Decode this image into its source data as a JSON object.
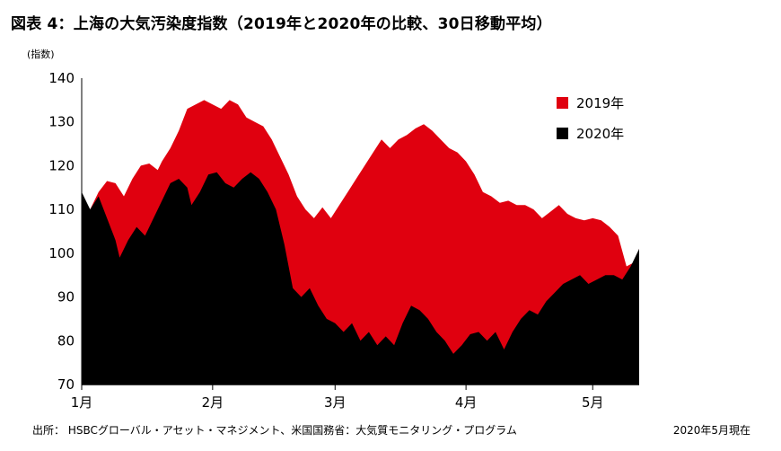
{
  "chart_data": {
    "type": "area",
    "title": "図表 4：上海の大気汚染度指数（2019年と2020年の比較、30日移動平均）",
    "ylabel": "(指数)",
    "xlabel": "",
    "ylim": [
      70,
      140
    ],
    "yticks": [
      70,
      80,
      90,
      100,
      110,
      120,
      130,
      140
    ],
    "xlim": [
      0,
      132
    ],
    "x_tick_labels": [
      {
        "day": 0,
        "label": "1月"
      },
      {
        "day": 31,
        "label": "2月"
      },
      {
        "day": 60,
        "label": "3月"
      },
      {
        "day": 91,
        "label": "4月"
      },
      {
        "day": 121,
        "label": "5月"
      }
    ],
    "legend_position": "top-right",
    "series": [
      {
        "name": "2019年",
        "color": "#e0000f",
        "points": [
          [
            0,
            113
          ],
          [
            2,
            110
          ],
          [
            4,
            114
          ],
          [
            6,
            116.5
          ],
          [
            8,
            116
          ],
          [
            10,
            113
          ],
          [
            12,
            117
          ],
          [
            14,
            120
          ],
          [
            16,
            120.5
          ],
          [
            18,
            119
          ],
          [
            19,
            121
          ],
          [
            21,
            124
          ],
          [
            23,
            128
          ],
          [
            25,
            133
          ],
          [
            27,
            134
          ],
          [
            29,
            135
          ],
          [
            31,
            134
          ],
          [
            33,
            133
          ],
          [
            35,
            135
          ],
          [
            37,
            134
          ],
          [
            39,
            131
          ],
          [
            41,
            130
          ],
          [
            43,
            129
          ],
          [
            45,
            126
          ],
          [
            47,
            122
          ],
          [
            49,
            118
          ],
          [
            51,
            113
          ],
          [
            53,
            110
          ],
          [
            55,
            108
          ],
          [
            57,
            110.5
          ],
          [
            59,
            108
          ],
          [
            61,
            111
          ],
          [
            63,
            114
          ],
          [
            65,
            117
          ],
          [
            67,
            120
          ],
          [
            69,
            123
          ],
          [
            71,
            126
          ],
          [
            73,
            124
          ],
          [
            75,
            126
          ],
          [
            77,
            127
          ],
          [
            79,
            128.5
          ],
          [
            81,
            129.5
          ],
          [
            83,
            128
          ],
          [
            85,
            126
          ],
          [
            87,
            124
          ],
          [
            89,
            123
          ],
          [
            91,
            121
          ],
          [
            93,
            118
          ],
          [
            95,
            114
          ],
          [
            97,
            113
          ],
          [
            99,
            111.5
          ],
          [
            101,
            112
          ],
          [
            103,
            111
          ],
          [
            105,
            111
          ],
          [
            107,
            110
          ],
          [
            109,
            108
          ],
          [
            111,
            109.5
          ],
          [
            113,
            111
          ],
          [
            115,
            109
          ],
          [
            117,
            108
          ],
          [
            119,
            107.5
          ],
          [
            121,
            108
          ],
          [
            123,
            107.5
          ],
          [
            125,
            106
          ],
          [
            127,
            104
          ],
          [
            129,
            97
          ],
          [
            131,
            98
          ],
          [
            132,
            101
          ]
        ]
      },
      {
        "name": "2020年",
        "color": "#000000",
        "points": [
          [
            0,
            114
          ],
          [
            2,
            110
          ],
          [
            4,
            113
          ],
          [
            6,
            108
          ],
          [
            8,
            103
          ],
          [
            9,
            99
          ],
          [
            11,
            103
          ],
          [
            13,
            106
          ],
          [
            15,
            104
          ],
          [
            17,
            108
          ],
          [
            19,
            112
          ],
          [
            21,
            116
          ],
          [
            23,
            117
          ],
          [
            25,
            115
          ],
          [
            26,
            111
          ],
          [
            28,
            114
          ],
          [
            30,
            118
          ],
          [
            32,
            118.5
          ],
          [
            34,
            116
          ],
          [
            36,
            115
          ],
          [
            38,
            117
          ],
          [
            40,
            118.5
          ],
          [
            42,
            117
          ],
          [
            44,
            114
          ],
          [
            46,
            110
          ],
          [
            48,
            102
          ],
          [
            50,
            92
          ],
          [
            52,
            90
          ],
          [
            54,
            92
          ],
          [
            56,
            88
          ],
          [
            58,
            85
          ],
          [
            60,
            84
          ],
          [
            62,
            82
          ],
          [
            64,
            84
          ],
          [
            66,
            80
          ],
          [
            68,
            82
          ],
          [
            70,
            79
          ],
          [
            72,
            81
          ],
          [
            74,
            79
          ],
          [
            76,
            84
          ],
          [
            78,
            88
          ],
          [
            80,
            87
          ],
          [
            82,
            85
          ],
          [
            84,
            82
          ],
          [
            86,
            80
          ],
          [
            88,
            77
          ],
          [
            90,
            79
          ],
          [
            92,
            81.5
          ],
          [
            94,
            82
          ],
          [
            96,
            80
          ],
          [
            98,
            82
          ],
          [
            100,
            78
          ],
          [
            102,
            82
          ],
          [
            104,
            85
          ],
          [
            106,
            87
          ],
          [
            108,
            86
          ],
          [
            110,
            89
          ],
          [
            112,
            91
          ],
          [
            114,
            93
          ],
          [
            116,
            94
          ],
          [
            118,
            95
          ],
          [
            120,
            93
          ],
          [
            122,
            94
          ],
          [
            124,
            95
          ],
          [
            126,
            95
          ],
          [
            128,
            94
          ],
          [
            130,
            97
          ],
          [
            132,
            101
          ]
        ]
      }
    ]
  },
  "footer": {
    "source": "出所： HSBCグローバル・アセット・マネジメント、米国国務省：大気質モニタリング・プログラム",
    "date": "2020年5月現在"
  }
}
